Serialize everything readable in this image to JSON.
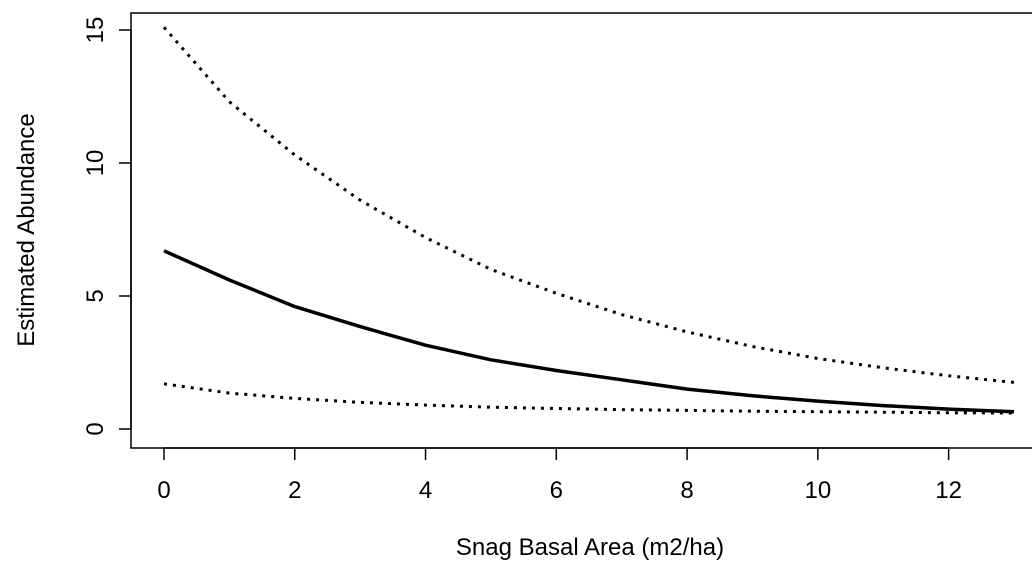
{
  "chart_data": {
    "type": "line",
    "title": "",
    "xlabel": "Snag Basal Area (m2/ha)",
    "ylabel": "Estimated Abundance",
    "xlim": [
      0,
      13
    ],
    "ylim": [
      0,
      15
    ],
    "xticks": [
      0,
      2,
      4,
      6,
      8,
      10,
      12
    ],
    "yticks": [
      0,
      5,
      10,
      15
    ],
    "grid": false,
    "legend": "none",
    "x": [
      0,
      1,
      2,
      3,
      4,
      5,
      6,
      7,
      8,
      9,
      10,
      11,
      12,
      13
    ],
    "series": [
      {
        "style": "solid",
        "values": [
          6.7,
          5.6,
          4.6,
          3.85,
          3.15,
          2.6,
          2.2,
          1.85,
          1.5,
          1.25,
          1.05,
          0.88,
          0.75,
          0.65
        ]
      },
      {
        "style": "dotted",
        "values": [
          15.1,
          12.3,
          10.3,
          8.6,
          7.2,
          6.0,
          5.1,
          4.3,
          3.65,
          3.1,
          2.65,
          2.3,
          2.0,
          1.75
        ]
      },
      {
        "style": "dotted",
        "values": [
          1.7,
          1.35,
          1.15,
          1.0,
          0.9,
          0.82,
          0.77,
          0.73,
          0.7,
          0.67,
          0.65,
          0.63,
          0.61,
          0.6
        ]
      }
    ],
    "colors": {
      "line": "#000000",
      "axis": "#000000",
      "background": "#ffffff"
    }
  }
}
